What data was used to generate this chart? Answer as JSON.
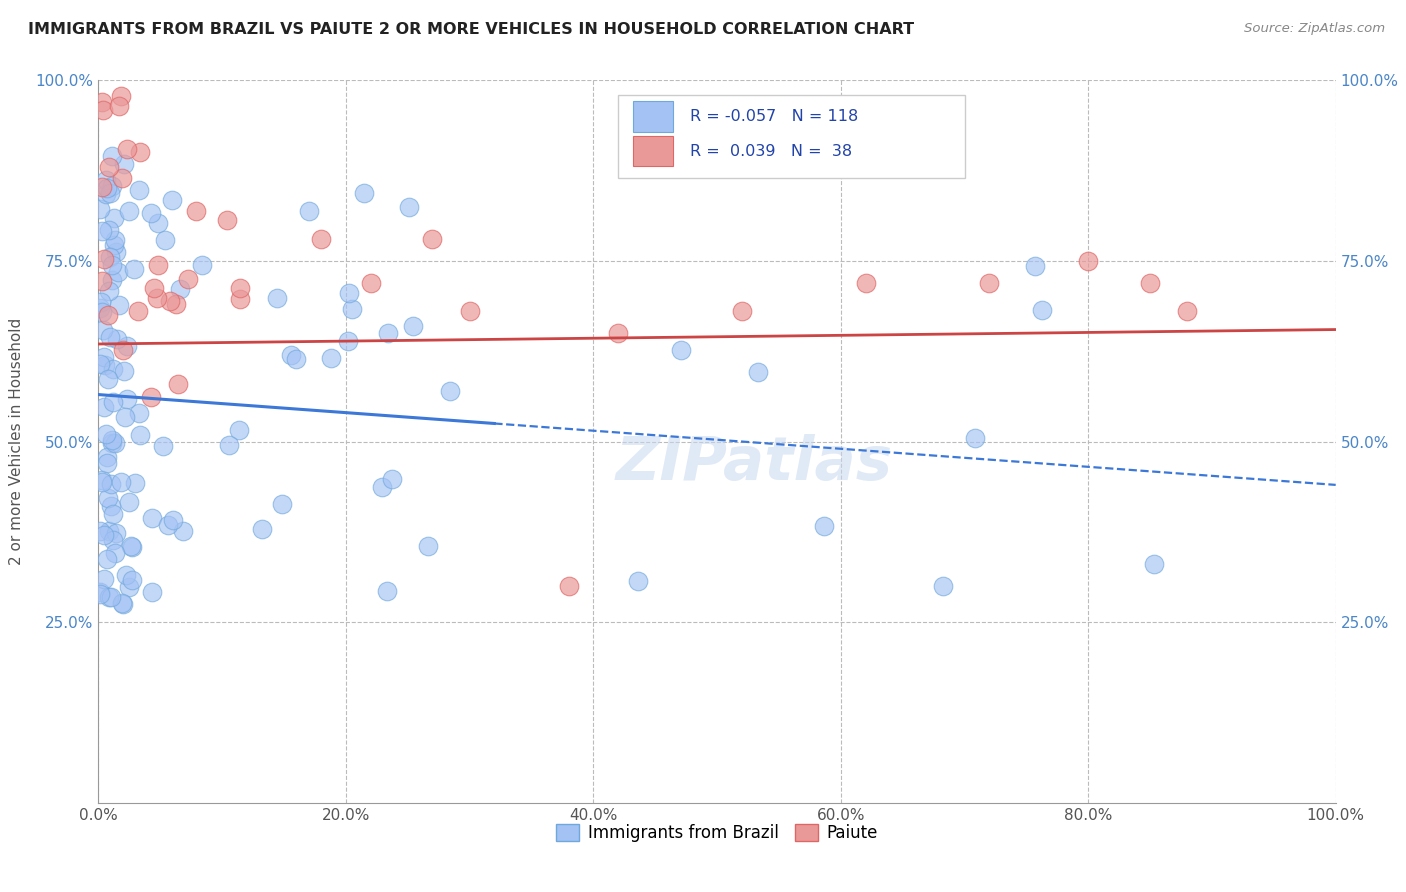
{
  "title": "IMMIGRANTS FROM BRAZIL VS PAIUTE 2 OR MORE VEHICLES IN HOUSEHOLD CORRELATION CHART",
  "source": "Source: ZipAtlas.com",
  "ylabel": "2 or more Vehicles in Household",
  "legend_r1": "-0.057",
  "legend_n1": "118",
  "legend_r2": " 0.039",
  "legend_n2": " 38",
  "legend_label1": "Immigrants from Brazil",
  "legend_label2": "Paiute",
  "watermark": "ZIPatlas",
  "xlim": [
    0.0,
    1.0
  ],
  "ylim": [
    0.0,
    1.0
  ],
  "xticks": [
    0.0,
    0.2,
    0.4,
    0.6,
    0.8,
    1.0
  ],
  "yticks": [
    0.25,
    0.5,
    0.75,
    1.0
  ],
  "xticklabels": [
    "0.0%",
    "20.0%",
    "40.0%",
    "60.0%",
    "80.0%",
    "100.0%"
  ],
  "yticklabels": [
    "25.0%",
    "50.0%",
    "75.0%",
    "100.0%"
  ],
  "color_blue": "#a4c2f4",
  "color_blue_edge": "#6fa8dc",
  "color_pink": "#ea9999",
  "color_pink_edge": "#e06666",
  "color_blue_line": "#3c78d8",
  "color_pink_line": "#cc4444",
  "background": "#ffffff",
  "grid_color": "#bbbbbb",
  "tick_color": "#4a86c8",
  "blue_line_y0": 0.565,
  "blue_line_y1": 0.44,
  "pink_line_y0": 0.635,
  "pink_line_y1": 0.655
}
